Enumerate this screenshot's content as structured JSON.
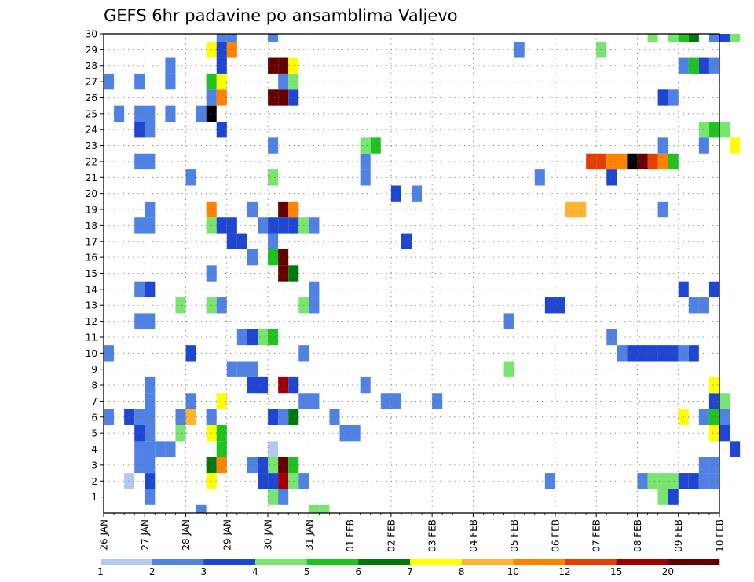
{
  "chart_data": {
    "type": "heatmap",
    "title": "GEFS 6hr padavine po ansamblima Valjevo",
    "x_ticks": [
      "26 JAN",
      "27 JAN",
      "28 JAN",
      "29 JAN",
      "30 JAN",
      "31 JAN",
      "01 FEB",
      "02 FEB",
      "03 FEB",
      "04 FEB",
      "05 FEB",
      "06 FEB",
      "07 FEB",
      "08 FEB",
      "09 FEB",
      "10 FEB"
    ],
    "y_ticks": [
      "1",
      "2",
      "3",
      "4",
      "5",
      "6",
      "7",
      "8",
      "9",
      "10",
      "11",
      "12",
      "13",
      "14",
      "15",
      "16",
      "17",
      "18",
      "19",
      "20",
      "21",
      "22",
      "23",
      "24",
      "25",
      "26",
      "27",
      "28",
      "29",
      "30"
    ],
    "ylim": [
      0,
      30
    ],
    "x_steps": 60,
    "grid": true,
    "colorbar": {
      "labels": [
        "1",
        "2",
        "3",
        "4",
        "5",
        "6",
        "7",
        "8",
        "10",
        "12",
        "15",
        "20"
      ],
      "colors": [
        "#b4c8f0",
        "#5082e6",
        "#1e46d2",
        "#78e66e",
        "#1ec31e",
        "#00780a",
        "#ffff00",
        "#ffb432",
        "#ff8200",
        "#e63c00",
        "#a00000",
        "#640000"
      ]
    },
    "cells": [
      [
        0,
        6,
        1
      ],
      [
        0,
        10,
        1
      ],
      [
        0,
        27,
        1
      ],
      [
        1,
        25,
        1
      ],
      [
        2,
        6,
        2
      ],
      [
        2,
        2,
        0
      ],
      [
        3,
        3,
        1
      ],
      [
        3,
        4,
        1
      ],
      [
        3,
        5,
        2
      ],
      [
        3,
        6,
        1
      ],
      [
        3,
        12,
        1
      ],
      [
        3,
        14,
        1
      ],
      [
        3,
        18,
        1
      ],
      [
        3,
        22,
        1
      ],
      [
        3,
        24,
        2
      ],
      [
        3,
        25,
        1
      ],
      [
        3,
        27,
        1
      ],
      [
        4,
        1,
        1
      ],
      [
        4,
        2,
        2
      ],
      [
        4,
        3,
        1
      ],
      [
        4,
        4,
        1
      ],
      [
        4,
        5,
        1
      ],
      [
        4,
        6,
        1
      ],
      [
        4,
        7,
        1
      ],
      [
        4,
        8,
        1
      ],
      [
        4,
        12,
        1
      ],
      [
        4,
        14,
        2
      ],
      [
        4,
        18,
        1
      ],
      [
        4,
        19,
        1
      ],
      [
        4,
        22,
        1
      ],
      [
        4,
        24,
        1
      ],
      [
        4,
        25,
        1
      ],
      [
        5,
        4,
        1
      ],
      [
        6,
        4,
        1
      ],
      [
        6,
        25,
        1
      ],
      [
        6,
        27,
        1
      ],
      [
        6,
        28,
        1
      ],
      [
        7,
        5,
        3
      ],
      [
        7,
        6,
        1
      ],
      [
        7,
        13,
        3
      ],
      [
        8,
        6,
        7
      ],
      [
        8,
        7,
        1
      ],
      [
        8,
        10,
        2
      ],
      [
        8,
        21,
        1
      ],
      [
        9,
        25,
        1
      ],
      [
        9,
        0,
        1
      ],
      [
        10,
        2,
        6
      ],
      [
        10,
        3,
        5
      ],
      [
        10,
        5,
        6
      ],
      [
        10,
        6,
        1
      ],
      [
        10,
        13,
        3
      ],
      [
        10,
        15,
        1
      ],
      [
        10,
        18,
        3
      ],
      [
        10,
        19,
        8
      ],
      [
        10,
        25,
        12
      ],
      [
        10,
        26,
        1
      ],
      [
        10,
        27,
        4
      ],
      [
        10,
        29,
        6
      ],
      [
        11,
        3,
        8
      ],
      [
        11,
        4,
        4
      ],
      [
        11,
        5,
        4
      ],
      [
        11,
        7,
        6
      ],
      [
        11,
        13,
        1
      ],
      [
        11,
        18,
        2
      ],
      [
        11,
        24,
        2
      ],
      [
        11,
        26,
        8
      ],
      [
        11,
        27,
        6
      ],
      [
        11,
        28,
        2
      ],
      [
        11,
        29,
        2
      ],
      [
        11,
        30,
        1
      ],
      [
        12,
        9,
        1
      ],
      [
        12,
        17,
        2
      ],
      [
        12,
        18,
        2
      ],
      [
        12,
        29,
        8
      ],
      [
        12,
        30,
        1
      ],
      [
        13,
        9,
        1
      ],
      [
        13,
        11,
        1
      ],
      [
        13,
        17,
        2
      ],
      [
        14,
        3,
        1
      ],
      [
        14,
        8,
        2
      ],
      [
        14,
        9,
        1
      ],
      [
        14,
        11,
        2
      ],
      [
        14,
        16,
        1
      ],
      [
        14,
        19,
        1
      ],
      [
        15,
        2,
        2
      ],
      [
        15,
        3,
        2
      ],
      [
        15,
        8,
        2
      ],
      [
        15,
        11,
        3
      ],
      [
        15,
        18,
        1
      ],
      [
        16,
        1,
        3
      ],
      [
        16,
        2,
        2
      ],
      [
        16,
        3,
        3
      ],
      [
        16,
        4,
        0
      ],
      [
        16,
        6,
        2
      ],
      [
        16,
        11,
        4
      ],
      [
        16,
        16,
        4
      ],
      [
        16,
        17,
        1
      ],
      [
        16,
        18,
        2
      ],
      [
        16,
        21,
        3
      ],
      [
        16,
        23,
        1
      ],
      [
        16,
        26,
        11
      ],
      [
        16,
        28,
        11
      ],
      [
        16,
        30,
        1
      ],
      [
        17,
        1,
        1
      ],
      [
        17,
        2,
        10
      ],
      [
        17,
        3,
        11
      ],
      [
        17,
        6,
        1
      ],
      [
        17,
        8,
        10
      ],
      [
        17,
        16,
        11
      ],
      [
        17,
        15,
        11
      ],
      [
        17,
        18,
        2
      ],
      [
        17,
        19,
        11
      ],
      [
        17,
        26,
        11
      ],
      [
        17,
        27,
        1
      ],
      [
        17,
        28,
        11
      ],
      [
        18,
        2,
        3
      ],
      [
        18,
        3,
        4
      ],
      [
        18,
        6,
        5
      ],
      [
        18,
        8,
        2
      ],
      [
        18,
        15,
        5
      ],
      [
        18,
        18,
        2
      ],
      [
        18,
        19,
        8
      ],
      [
        18,
        26,
        2
      ],
      [
        18,
        27,
        3
      ],
      [
        18,
        28,
        6
      ],
      [
        19,
        2,
        1
      ],
      [
        19,
        7,
        1
      ],
      [
        19,
        10,
        1
      ],
      [
        19,
        13,
        3
      ],
      [
        19,
        18,
        3
      ],
      [
        20,
        0,
        3
      ],
      [
        20,
        7,
        1
      ],
      [
        20,
        13,
        1
      ],
      [
        20,
        14,
        1
      ],
      [
        20,
        18,
        1
      ],
      [
        21,
        0,
        3
      ],
      [
        22,
        6,
        1
      ],
      [
        23,
        5,
        1
      ],
      [
        24,
        5,
        1
      ],
      [
        25,
        8,
        1
      ],
      [
        25,
        21,
        1
      ],
      [
        25,
        22,
        1
      ],
      [
        25,
        23,
        3
      ],
      [
        26,
        23,
        4
      ],
      [
        27,
        7,
        1
      ],
      [
        28,
        7,
        1
      ],
      [
        28,
        20,
        2
      ],
      [
        29,
        17,
        2
      ],
      [
        30,
        20,
        1
      ],
      [
        32,
        7,
        1
      ],
      [
        39,
        12,
        1
      ],
      [
        39,
        9,
        3
      ],
      [
        40,
        29,
        1
      ],
      [
        42,
        21,
        1
      ],
      [
        43,
        2,
        1
      ],
      [
        43,
        13,
        2
      ],
      [
        44,
        13,
        2
      ],
      [
        45,
        19,
        7
      ],
      [
        46,
        19,
        7
      ],
      [
        47,
        22,
        9
      ],
      [
        48,
        22,
        9
      ],
      [
        48,
        29,
        3
      ],
      [
        49,
        11,
        1
      ],
      [
        49,
        21,
        2
      ],
      [
        49,
        22,
        8
      ],
      [
        50,
        10,
        1
      ],
      [
        50,
        22,
        8
      ],
      [
        51,
        10,
        2
      ],
      [
        51,
        22,
        12
      ],
      [
        52,
        2,
        1
      ],
      [
        52,
        10,
        2
      ],
      [
        52,
        22,
        11
      ],
      [
        53,
        2,
        3
      ],
      [
        53,
        10,
        2
      ],
      [
        53,
        22,
        9
      ],
      [
        53,
        30,
        3
      ],
      [
        54,
        1,
        3
      ],
      [
        54,
        2,
        3
      ],
      [
        54,
        10,
        2
      ],
      [
        54,
        19,
        1
      ],
      [
        54,
        22,
        8
      ],
      [
        54,
        23,
        1
      ],
      [
        54,
        26,
        2
      ],
      [
        55,
        1,
        2
      ],
      [
        55,
        2,
        3
      ],
      [
        55,
        10,
        2
      ],
      [
        55,
        22,
        4
      ],
      [
        55,
        26,
        1
      ],
      [
        55,
        30,
        3
      ],
      [
        56,
        2,
        2
      ],
      [
        56,
        6,
        6
      ],
      [
        56,
        10,
        1
      ],
      [
        56,
        14,
        2
      ],
      [
        56,
        28,
        1
      ],
      [
        56,
        30,
        4
      ],
      [
        57,
        2,
        2
      ],
      [
        57,
        10,
        2
      ],
      [
        57,
        13,
        1
      ],
      [
        57,
        28,
        4
      ],
      [
        57,
        30,
        5
      ],
      [
        58,
        2,
        1
      ],
      [
        58,
        3,
        1
      ],
      [
        58,
        6,
        1
      ],
      [
        58,
        13,
        1
      ],
      [
        58,
        23,
        1
      ],
      [
        58,
        24,
        3
      ],
      [
        58,
        28,
        2
      ],
      [
        59,
        2,
        1
      ],
      [
        59,
        3,
        1
      ],
      [
        59,
        5,
        6
      ],
      [
        59,
        6,
        4
      ],
      [
        59,
        7,
        2
      ],
      [
        59,
        8,
        6
      ],
      [
        59,
        14,
        2
      ],
      [
        59,
        24,
        4
      ],
      [
        59,
        28,
        1
      ],
      [
        59,
        30,
        1
      ],
      [
        60,
        5,
        2
      ],
      [
        60,
        6,
        1
      ],
      [
        60,
        7,
        3
      ],
      [
        60,
        24,
        3
      ],
      [
        60,
        30,
        2
      ],
      [
        61,
        4,
        2
      ],
      [
        61,
        23,
        6
      ],
      [
        61,
        30,
        3
      ]
    ]
  }
}
